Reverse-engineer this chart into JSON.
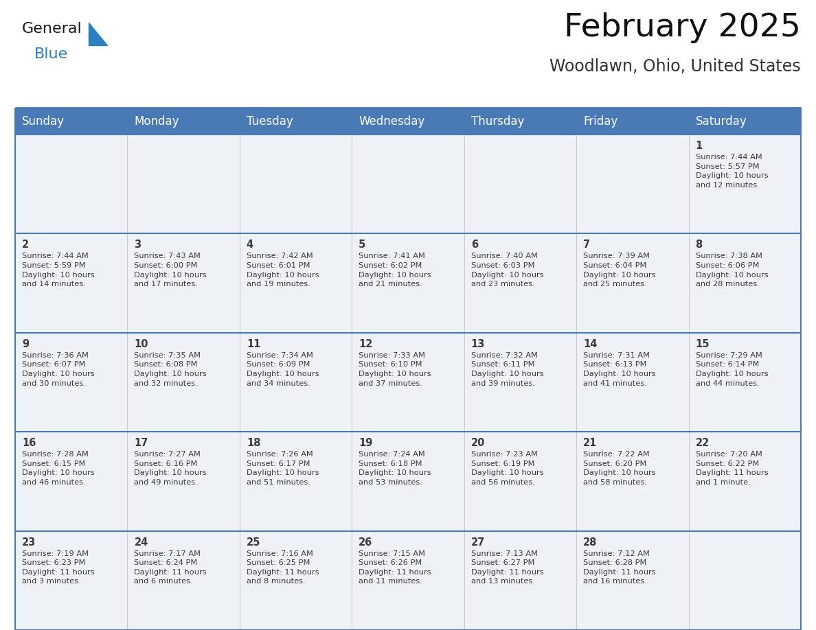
{
  "title": "February 2025",
  "subtitle": "Woodlawn, Ohio, United States",
  "header_bg_color": "#4a7ab5",
  "header_text_color": "#ffffff",
  "row_bg": "#eef2f6",
  "day_num_color": "#3a3a3a",
  "info_text_color": "#3a3a3a",
  "day_headers": [
    "Sunday",
    "Monday",
    "Tuesday",
    "Wednesday",
    "Thursday",
    "Friday",
    "Saturday"
  ],
  "title_fontsize": 34,
  "subtitle_fontsize": 17,
  "header_fontsize": 12,
  "day_num_fontsize": 10.5,
  "info_fontsize": 8.2,
  "border_color": "#4a7ab5",
  "separator_color": "#4a7ab5",
  "grid_color": "#cccccc",
  "calendar": [
    [
      null,
      null,
      null,
      null,
      null,
      null,
      {
        "day": 1,
        "sunrise": "7:44 AM",
        "sunset": "5:57 PM",
        "daylight": "10 hours\nand 12 minutes."
      }
    ],
    [
      {
        "day": 2,
        "sunrise": "7:44 AM",
        "sunset": "5:59 PM",
        "daylight": "10 hours\nand 14 minutes."
      },
      {
        "day": 3,
        "sunrise": "7:43 AM",
        "sunset": "6:00 PM",
        "daylight": "10 hours\nand 17 minutes."
      },
      {
        "day": 4,
        "sunrise": "7:42 AM",
        "sunset": "6:01 PM",
        "daylight": "10 hours\nand 19 minutes."
      },
      {
        "day": 5,
        "sunrise": "7:41 AM",
        "sunset": "6:02 PM",
        "daylight": "10 hours\nand 21 minutes."
      },
      {
        "day": 6,
        "sunrise": "7:40 AM",
        "sunset": "6:03 PM",
        "daylight": "10 hours\nand 23 minutes."
      },
      {
        "day": 7,
        "sunrise": "7:39 AM",
        "sunset": "6:04 PM",
        "daylight": "10 hours\nand 25 minutes."
      },
      {
        "day": 8,
        "sunrise": "7:38 AM",
        "sunset": "6:06 PM",
        "daylight": "10 hours\nand 28 minutes."
      }
    ],
    [
      {
        "day": 9,
        "sunrise": "7:36 AM",
        "sunset": "6:07 PM",
        "daylight": "10 hours\nand 30 minutes."
      },
      {
        "day": 10,
        "sunrise": "7:35 AM",
        "sunset": "6:08 PM",
        "daylight": "10 hours\nand 32 minutes."
      },
      {
        "day": 11,
        "sunrise": "7:34 AM",
        "sunset": "6:09 PM",
        "daylight": "10 hours\nand 34 minutes."
      },
      {
        "day": 12,
        "sunrise": "7:33 AM",
        "sunset": "6:10 PM",
        "daylight": "10 hours\nand 37 minutes."
      },
      {
        "day": 13,
        "sunrise": "7:32 AM",
        "sunset": "6:11 PM",
        "daylight": "10 hours\nand 39 minutes."
      },
      {
        "day": 14,
        "sunrise": "7:31 AM",
        "sunset": "6:13 PM",
        "daylight": "10 hours\nand 41 minutes."
      },
      {
        "day": 15,
        "sunrise": "7:29 AM",
        "sunset": "6:14 PM",
        "daylight": "10 hours\nand 44 minutes."
      }
    ],
    [
      {
        "day": 16,
        "sunrise": "7:28 AM",
        "sunset": "6:15 PM",
        "daylight": "10 hours\nand 46 minutes."
      },
      {
        "day": 17,
        "sunrise": "7:27 AM",
        "sunset": "6:16 PM",
        "daylight": "10 hours\nand 49 minutes."
      },
      {
        "day": 18,
        "sunrise": "7:26 AM",
        "sunset": "6:17 PM",
        "daylight": "10 hours\nand 51 minutes."
      },
      {
        "day": 19,
        "sunrise": "7:24 AM",
        "sunset": "6:18 PM",
        "daylight": "10 hours\nand 53 minutes."
      },
      {
        "day": 20,
        "sunrise": "7:23 AM",
        "sunset": "6:19 PM",
        "daylight": "10 hours\nand 56 minutes."
      },
      {
        "day": 21,
        "sunrise": "7:22 AM",
        "sunset": "6:20 PM",
        "daylight": "10 hours\nand 58 minutes."
      },
      {
        "day": 22,
        "sunrise": "7:20 AM",
        "sunset": "6:22 PM",
        "daylight": "11 hours\nand 1 minute."
      }
    ],
    [
      {
        "day": 23,
        "sunrise": "7:19 AM",
        "sunset": "6:23 PM",
        "daylight": "11 hours\nand 3 minutes."
      },
      {
        "day": 24,
        "sunrise": "7:17 AM",
        "sunset": "6:24 PM",
        "daylight": "11 hours\nand 6 minutes."
      },
      {
        "day": 25,
        "sunrise": "7:16 AM",
        "sunset": "6:25 PM",
        "daylight": "11 hours\nand 8 minutes."
      },
      {
        "day": 26,
        "sunrise": "7:15 AM",
        "sunset": "6:26 PM",
        "daylight": "11 hours\nand 11 minutes."
      },
      {
        "day": 27,
        "sunrise": "7:13 AM",
        "sunset": "6:27 PM",
        "daylight": "11 hours\nand 13 minutes."
      },
      {
        "day": 28,
        "sunrise": "7:12 AM",
        "sunset": "6:28 PM",
        "daylight": "11 hours\nand 16 minutes."
      },
      null
    ]
  ]
}
